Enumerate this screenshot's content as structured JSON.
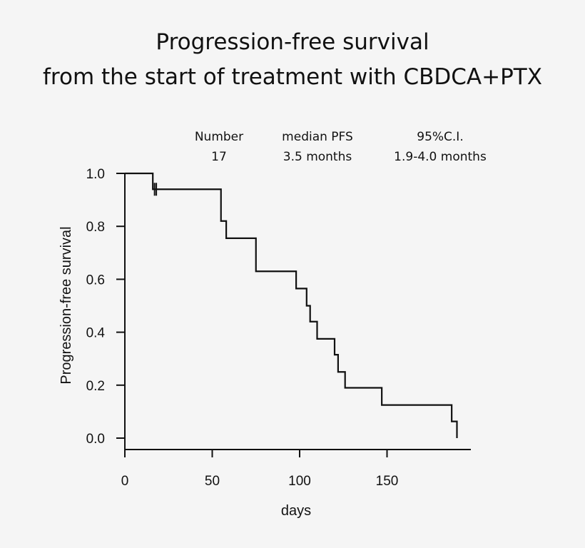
{
  "chart_data": {
    "type": "line",
    "subtype": "kaplan-meier step curve",
    "title_line1": "Progression-free survival",
    "title_line2": "from the start of treatment   with CBDCA+PTX",
    "xlabel": "days",
    "ylabel": "Progression-free survival",
    "xlim": [
      0,
      200
    ],
    "ylim": [
      0,
      1.0
    ],
    "xticks": [
      "0",
      "50",
      "100",
      "150"
    ],
    "yticks": [
      "0.0",
      "0.2",
      "0.4",
      "0.6",
      "0.8",
      "1.0"
    ],
    "grid": false,
    "legend": "none",
    "stats": {
      "number_label": "Number",
      "number_value": "17",
      "median_label": "median PFS",
      "median_value": "3.5 months",
      "ci_label": "95%C.I.",
      "ci_value": "1.9-4.0 months"
    },
    "steps": [
      {
        "x": 0,
        "y": 1.0
      },
      {
        "x": 16,
        "y": 0.94
      },
      {
        "x": 55,
        "y": 0.82
      },
      {
        "x": 58,
        "y": 0.755
      },
      {
        "x": 75,
        "y": 0.63
      },
      {
        "x": 98,
        "y": 0.565
      },
      {
        "x": 104,
        "y": 0.5
      },
      {
        "x": 106,
        "y": 0.44
      },
      {
        "x": 110,
        "y": 0.375
      },
      {
        "x": 120,
        "y": 0.315
      },
      {
        "x": 122,
        "y": 0.25
      },
      {
        "x": 126,
        "y": 0.19
      },
      {
        "x": 147,
        "y": 0.125
      },
      {
        "x": 187,
        "y": 0.063
      },
      {
        "x": 190,
        "y": 0.0
      }
    ],
    "censored": [
      {
        "x": 17,
        "y": 0.94
      },
      {
        "x": 18,
        "y": 0.94
      }
    ],
    "color": "#111111"
  }
}
